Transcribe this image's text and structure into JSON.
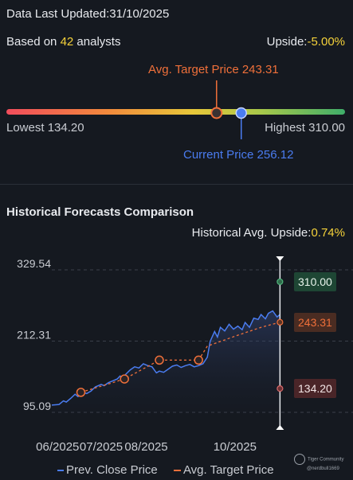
{
  "header": {
    "updated_label": "Data Last Updated:",
    "updated_date": "31/10/2025",
    "based_prefix": "Based on ",
    "analyst_count": "42",
    "based_suffix": " analysts",
    "upside_label": "Upside:",
    "upside_value": "-5.00%"
  },
  "range": {
    "avg_target_label": "Avg. Target Price 243.31",
    "current_label": "Current Price 256.12",
    "lowest_label": "Lowest 134.20",
    "highest_label": "Highest 310.00",
    "low": 134.2,
    "high": 310.0,
    "avg_target": 243.31,
    "current": 256.12
  },
  "history": {
    "title": "Historical Forecasts Comparison",
    "upside_label": "Historical Avg. Upside:",
    "upside_value": "0.74%"
  },
  "legend": {
    "prev_close": "Prev. Close Price",
    "avg_target": "Avg. Target Price"
  },
  "watermark": {
    "brand": "Tiger Community",
    "user": "@nerdbull1669"
  },
  "colors": {
    "price": "#4a7cf0",
    "target": "#f0703a",
    "high": "#4fb37a",
    "low": "#d96a6a",
    "accent_yellow": "#f5d23a"
  },
  "chart_data": {
    "type": "line",
    "x_ticks": [
      "06/2025",
      "07/2025",
      "08/2025",
      "10/2025"
    ],
    "y_ticks": [
      "329.54",
      "212.31",
      "95.09"
    ],
    "ylim": [
      95.09,
      329.54
    ],
    "xlim": [
      "2025-05-28",
      "2025-11-03"
    ],
    "end_labels": {
      "high": "310.00",
      "avg_target": "243.31",
      "low": "134.20"
    },
    "series": [
      {
        "name": "Prev. Close Price",
        "points": [
          [
            "2025-05-28",
            107
          ],
          [
            "2025-06-02",
            108
          ],
          [
            "2025-06-05",
            114
          ],
          [
            "2025-06-07",
            112
          ],
          [
            "2025-06-10",
            118
          ],
          [
            "2025-06-13",
            125
          ],
          [
            "2025-06-15",
            121
          ],
          [
            "2025-06-17",
            124
          ],
          [
            "2025-06-19",
            128
          ],
          [
            "2025-06-21",
            126
          ],
          [
            "2025-06-24",
            130
          ],
          [
            "2025-06-27",
            137
          ],
          [
            "2025-07-01",
            141
          ],
          [
            "2025-07-03",
            139
          ],
          [
            "2025-07-06",
            144
          ],
          [
            "2025-07-09",
            147
          ],
          [
            "2025-07-12",
            150
          ],
          [
            "2025-07-14",
            155
          ],
          [
            "2025-07-16",
            152
          ],
          [
            "2025-07-18",
            158
          ],
          [
            "2025-07-21",
            165
          ],
          [
            "2025-07-24",
            170
          ],
          [
            "2025-07-27",
            168
          ],
          [
            "2025-07-30",
            175
          ],
          [
            "2025-08-02",
            172
          ],
          [
            "2025-08-05",
            170
          ],
          [
            "2025-08-08",
            160
          ],
          [
            "2025-08-10",
            163
          ],
          [
            "2025-08-13",
            161
          ],
          [
            "2025-08-16",
            166
          ],
          [
            "2025-08-19",
            171
          ],
          [
            "2025-08-22",
            173
          ],
          [
            "2025-08-25",
            169
          ],
          [
            "2025-08-28",
            172
          ],
          [
            "2025-08-31",
            174
          ],
          [
            "2025-09-03",
            170
          ],
          [
            "2025-09-06",
            172
          ],
          [
            "2025-09-09",
            175
          ],
          [
            "2025-09-12",
            186
          ],
          [
            "2025-09-14",
            212
          ],
          [
            "2025-09-17",
            228
          ],
          [
            "2025-09-19",
            219
          ],
          [
            "2025-09-21",
            235
          ],
          [
            "2025-09-24",
            229
          ],
          [
            "2025-09-27",
            240
          ],
          [
            "2025-09-30",
            232
          ],
          [
            "2025-10-03",
            237
          ],
          [
            "2025-10-06",
            231
          ],
          [
            "2025-10-08",
            243
          ],
          [
            "2025-10-11",
            235
          ],
          [
            "2025-10-14",
            250
          ],
          [
            "2025-10-17",
            248
          ],
          [
            "2025-10-19",
            256
          ],
          [
            "2025-10-22",
            249
          ],
          [
            "2025-10-24",
            258
          ],
          [
            "2025-10-27",
            262
          ],
          [
            "2025-10-30",
            252
          ],
          [
            "2025-11-01",
            256
          ]
        ]
      },
      {
        "name": "Avg. Target Price",
        "points": [
          [
            "2025-06-17",
            128
          ],
          [
            "2025-07-17",
            150
          ],
          [
            "2025-08-10",
            181
          ],
          [
            "2025-09-06",
            181
          ],
          [
            "2025-09-12",
            204
          ],
          [
            "2025-10-03",
            222
          ],
          [
            "2025-10-19",
            235
          ],
          [
            "2025-11-01",
            243.31
          ]
        ],
        "markers": [
          [
            "2025-06-17",
            128
          ],
          [
            "2025-07-17",
            150
          ],
          [
            "2025-08-10",
            181
          ],
          [
            "2025-09-06",
            181
          ]
        ]
      }
    ]
  }
}
